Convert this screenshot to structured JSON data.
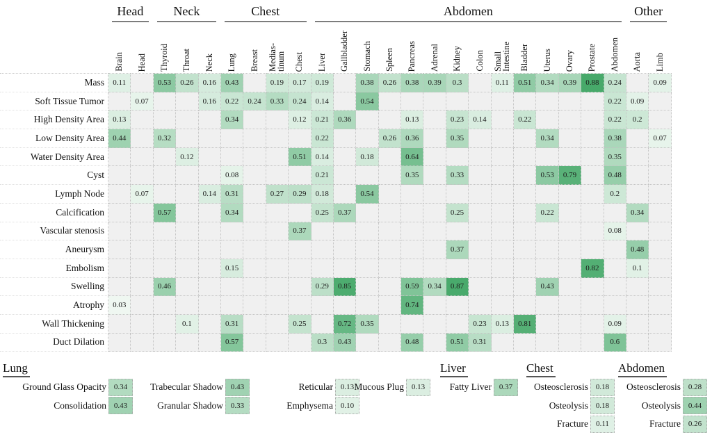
{
  "chart_data": {
    "type": "heatmap",
    "description": "Co-occurrence matrix of radiology findings (rows) vs anatomical regions (columns), values 0-1 shaded green",
    "color_scale": {
      "low_color": "#f5faf6",
      "high_color": "#2f9e57",
      "empty_color": "#f0f0f0",
      "range": [
        0,
        1
      ]
    },
    "column_groups": [
      {
        "label": "Head",
        "span": 2
      },
      {
        "label": "Neck",
        "span": 3
      },
      {
        "label": "Chest",
        "span": 4
      },
      {
        "label": "Abdomen",
        "span": 14
      },
      {
        "label": "Other",
        "span": 2
      }
    ],
    "columns": [
      "Brain",
      "Head",
      "Thyroid",
      "Throat",
      "Neck",
      "Lung",
      "Breast",
      "Medias-\ntinum",
      "Chest",
      "Liver",
      "Gallbladder",
      "Stomach",
      "Spleen",
      "Pancreas",
      "Adrenal",
      "Kidney",
      "Colon",
      "Small\nIntestine",
      "Bladder",
      "Uterus",
      "Ovary",
      "Prostate",
      "Abdomen",
      "Aorta",
      "Limb"
    ],
    "rows": [
      {
        "label": "Mass",
        "values": [
          "0.11",
          "",
          "0.53",
          "0.26",
          "0.16",
          "0.43",
          "",
          "0.19",
          "0.17",
          "0.19",
          "",
          "0.38",
          "0.26",
          "0.38",
          "0.39",
          "0.3",
          "",
          "0.11",
          "0.51",
          "0.34",
          "0.39",
          "0.88",
          "0.24",
          "",
          "0.09"
        ]
      },
      {
        "label": "Soft Tissue Tumor",
        "values": [
          "",
          "0.07",
          "",
          "",
          "0.16",
          "0.22",
          "0.24",
          "0.33",
          "0.24",
          "0.14",
          "",
          "0.54",
          "",
          "",
          "",
          "",
          "",
          "",
          "",
          "",
          "",
          "",
          "0.22",
          "0.09",
          ""
        ]
      },
      {
        "label": "High Density Area",
        "values": [
          "0.13",
          "",
          "",
          "",
          "",
          "0.34",
          "",
          "",
          "0.12",
          "0.21",
          "0.36",
          "",
          "",
          "0.13",
          "",
          "0.23",
          "0.14",
          "",
          "0.22",
          "",
          "",
          "",
          "0.22",
          "0.2",
          ""
        ]
      },
      {
        "label": "Low Density Area",
        "values": [
          "0.44",
          "",
          "0.32",
          "",
          "",
          "",
          "",
          "",
          "",
          "0.22",
          "",
          "",
          "0.26",
          "0.36",
          "",
          "0.35",
          "",
          "",
          "",
          "0.34",
          "",
          "",
          "0.38",
          "",
          "0.07"
        ]
      },
      {
        "label": "Water Density Area",
        "values": [
          "",
          "",
          "",
          "0.12",
          "",
          "",
          "",
          "",
          "0.51",
          "0.14",
          "",
          "0.18",
          "",
          "0.64",
          "",
          "",
          "",
          "",
          "",
          "",
          "",
          "",
          "0.35",
          "",
          ""
        ]
      },
      {
        "label": "Cyst",
        "values": [
          "",
          "",
          "",
          "",
          "",
          "0.08",
          "",
          "",
          "",
          "0.21",
          "",
          "",
          "",
          "0.35",
          "",
          "0.33",
          "",
          "",
          "",
          "0.53",
          "0.79",
          "",
          "0.48",
          "",
          ""
        ]
      },
      {
        "label": "Lymph Node",
        "values": [
          "",
          "0.07",
          "",
          "",
          "0.14",
          "0.31",
          "",
          "0.27",
          "0.29",
          "0.18",
          "",
          "0.54",
          "",
          "",
          "",
          "",
          "",
          "",
          "",
          "",
          "",
          "",
          "0.2",
          "",
          ""
        ]
      },
      {
        "label": "Calcification",
        "values": [
          "",
          "",
          "0.57",
          "",
          "",
          "0.34",
          "",
          "",
          "",
          "0.25",
          "0.37",
          "",
          "",
          "",
          "",
          "0.25",
          "",
          "",
          "",
          "0.22",
          "",
          "",
          "",
          "0.34",
          ""
        ]
      },
      {
        "label": "Vascular stenosis",
        "values": [
          "",
          "",
          "",
          "",
          "",
          "",
          "",
          "",
          "0.37",
          "",
          "",
          "",
          "",
          "",
          "",
          "",
          "",
          "",
          "",
          "",
          "",
          "",
          "0.08",
          "",
          ""
        ]
      },
      {
        "label": "Aneurysm",
        "values": [
          "",
          "",
          "",
          "",
          "",
          "",
          "",
          "",
          "",
          "",
          "",
          "",
          "",
          "",
          "",
          "0.37",
          "",
          "",
          "",
          "",
          "",
          "",
          "",
          "0.48",
          ""
        ]
      },
      {
        "label": "Embolism",
        "values": [
          "",
          "",
          "",
          "",
          "",
          "0.15",
          "",
          "",
          "",
          "",
          "",
          "",
          "",
          "",
          "",
          "",
          "",
          "",
          "",
          "",
          "",
          "0.82",
          "",
          "0.1",
          ""
        ]
      },
      {
        "label": "Swelling",
        "values": [
          "",
          "",
          "0.46",
          "",
          "",
          "",
          "",
          "",
          "",
          "0.29",
          "0.85",
          "",
          "",
          "0.59",
          "0.34",
          "0.87",
          "",
          "",
          "",
          "0.43",
          "",
          "",
          "",
          "",
          ""
        ]
      },
      {
        "label": "Atrophy",
        "values": [
          "0.03",
          "",
          "",
          "",
          "",
          "",
          "",
          "",
          "",
          "",
          "",
          "",
          "",
          "0.74",
          "",
          "",
          "",
          "",
          "",
          "",
          "",
          "",
          "",
          "",
          ""
        ]
      },
      {
        "label": "Wall Thickening",
        "values": [
          "",
          "",
          "",
          "0.1",
          "",
          "0.31",
          "",
          "",
          "0.25",
          "",
          "0.72",
          "0.35",
          "",
          "",
          "",
          "",
          "0.23",
          "0.13",
          "0.81",
          "",
          "",
          "",
          "0.09",
          "",
          ""
        ]
      },
      {
        "label": "Duct Dilation",
        "values": [
          "",
          "",
          "",
          "",
          "",
          "0.57",
          "",
          "",
          "",
          "0.3",
          "0.43",
          "",
          "",
          "0.48",
          "",
          "0.51",
          "0.31",
          "",
          "",
          "",
          "",
          "",
          "0.6",
          "",
          ""
        ]
      }
    ]
  },
  "footer": {
    "groups": [
      {
        "title": "Lung",
        "columns": [
          [
            {
              "label": "Ground Glass Opacity",
              "value": "0.34"
            },
            {
              "label": "Consolidation",
              "value": "0.43"
            }
          ],
          [
            {
              "label": "Trabecular Shadow",
              "value": "0.43"
            },
            {
              "label": "Granular Shadow",
              "value": "0.33"
            }
          ],
          [
            {
              "label": "Reticular",
              "value": "0.13"
            },
            {
              "label": "Emphysema",
              "value": "0.10"
            }
          ],
          [
            {
              "label": "Mucous Plug",
              "value": "0.13"
            }
          ]
        ]
      },
      {
        "title": "Liver",
        "columns": [
          [
            {
              "label": "Fatty Liver",
              "value": "0.37"
            }
          ]
        ]
      },
      {
        "title": "Chest",
        "columns": [
          [
            {
              "label": "Osteosclerosis",
              "value": "0.18"
            },
            {
              "label": "Osteolysis",
              "value": "0.18"
            },
            {
              "label": "Fracture",
              "value": "0.11"
            }
          ]
        ]
      },
      {
        "title": "Abdomen",
        "columns": [
          [
            {
              "label": "Osteosclerosis",
              "value": "0.28"
            },
            {
              "label": "Osteolysis",
              "value": "0.44"
            },
            {
              "label": "Fracture",
              "value": "0.26"
            }
          ]
        ]
      }
    ]
  }
}
